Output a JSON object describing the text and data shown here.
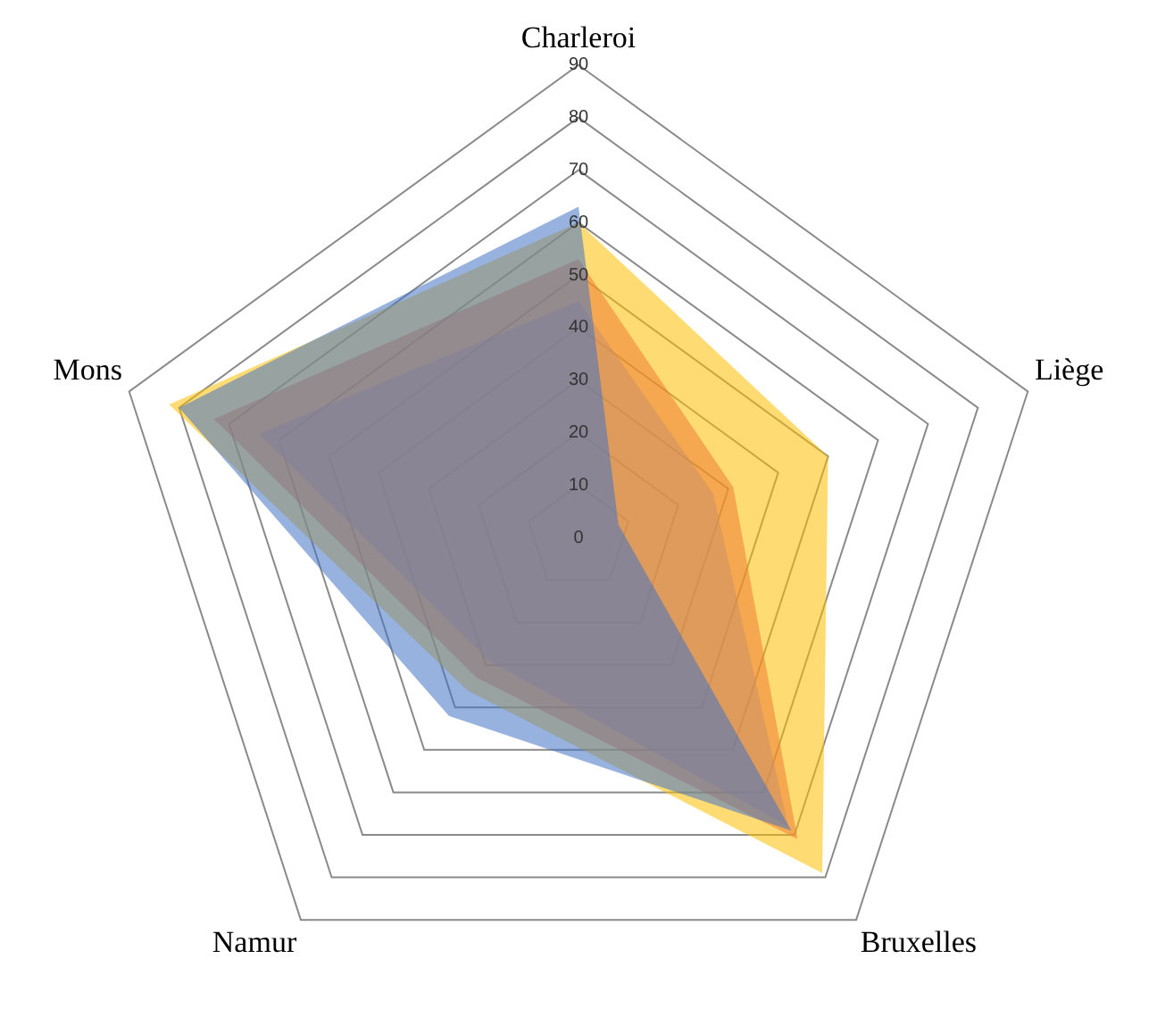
{
  "chart_data": {
    "type": "radar",
    "categories": [
      "Charleroi",
      "Liège",
      "Bruxelles",
      "Namur",
      "Mons"
    ],
    "series": [
      {
        "color": "#4472c4",
        "values": [
          63,
          8,
          69,
          42,
          80
        ]
      },
      {
        "color": "#ed7d31",
        "values": [
          53,
          31,
          71,
          33,
          73
        ]
      },
      {
        "color": "#a5a5a5",
        "values": [
          45,
          27,
          68,
          29,
          64
        ]
      },
      {
        "color": "#ffc000",
        "values": [
          60,
          50,
          79,
          36,
          82
        ]
      }
    ],
    "ylim": [
      0,
      90
    ],
    "yticks": [
      0,
      10,
      20,
      30,
      40,
      50,
      60,
      70,
      80,
      90
    ],
    "grid": true,
    "marker": "none",
    "legend": false
  }
}
